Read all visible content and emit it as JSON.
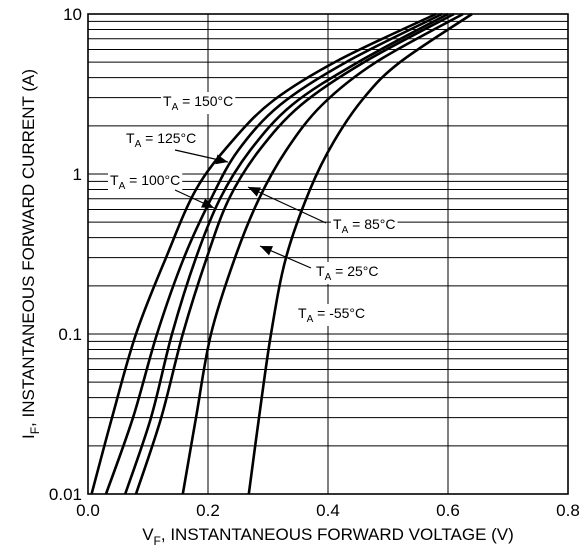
{
  "chart_data": {
    "type": "line",
    "y_scale": "log",
    "xlim": [
      0.0,
      0.8
    ],
    "ylim": [
      0.01,
      10
    ],
    "x_ticks": [
      "0.0",
      "0.2",
      "0.4",
      "0.6",
      "0.8"
    ],
    "y_ticks": [
      "0.01",
      "0.1",
      "1",
      "10"
    ],
    "grid": true,
    "xlabel": {
      "main": "V",
      "sub": "F",
      "rest": ", INSTANTANEOUS FORWARD VOLTAGE (V)"
    },
    "ylabel": {
      "main": "I",
      "sub": "F",
      "rest": ", INSTANTANEOUS FORWARD CURRENT (A)"
    },
    "series": [
      {
        "name": "T_A = 150°C",
        "label": {
          "main": "T",
          "sub": "A",
          "rest": " = 150°C"
        },
        "points": [
          [
            0.006,
            0.01
          ],
          [
            0.04,
            0.03
          ],
          [
            0.08,
            0.1
          ],
          [
            0.13,
            0.3
          ],
          [
            0.18,
            0.8
          ],
          [
            0.24,
            1.6
          ],
          [
            0.31,
            2.9
          ],
          [
            0.42,
            5.2
          ],
          [
            0.58,
            10.0
          ]
        ]
      },
      {
        "name": "T_A = 125°C",
        "label": {
          "main": "T",
          "sub": "A",
          "rest": " = 125°C"
        },
        "points": [
          [
            0.03,
            0.01
          ],
          [
            0.075,
            0.03
          ],
          [
            0.115,
            0.1
          ],
          [
            0.16,
            0.3
          ],
          [
            0.205,
            0.7
          ],
          [
            0.25,
            1.4
          ],
          [
            0.32,
            2.7
          ],
          [
            0.43,
            5.0
          ],
          [
            0.59,
            10.0
          ]
        ]
      },
      {
        "name": "T_A = 100°C",
        "label": {
          "main": "T",
          "sub": "A",
          "rest": " = 100°C"
        },
        "points": [
          [
            0.062,
            0.01
          ],
          [
            0.105,
            0.03
          ],
          [
            0.14,
            0.1
          ],
          [
            0.18,
            0.3
          ],
          [
            0.22,
            0.7
          ],
          [
            0.27,
            1.4
          ],
          [
            0.34,
            2.7
          ],
          [
            0.45,
            5.0
          ],
          [
            0.6,
            10.0
          ]
        ]
      },
      {
        "name": "T_A = 85°C",
        "label": {
          "main": "T",
          "sub": "A",
          "rest": " = 85°C"
        },
        "points": [
          [
            0.08,
            0.01
          ],
          [
            0.122,
            0.03
          ],
          [
            0.158,
            0.1
          ],
          [
            0.198,
            0.3
          ],
          [
            0.235,
            0.7
          ],
          [
            0.285,
            1.4
          ],
          [
            0.355,
            2.7
          ],
          [
            0.46,
            5.0
          ],
          [
            0.61,
            10.0
          ]
        ]
      },
      {
        "name": "T_A = 25°C",
        "label": {
          "main": "T",
          "sub": "A",
          "rest": " = 25°C"
        },
        "points": [
          [
            0.158,
            0.01
          ],
          [
            0.18,
            0.03
          ],
          [
            0.205,
            0.1
          ],
          [
            0.245,
            0.3
          ],
          [
            0.285,
            0.7
          ],
          [
            0.33,
            1.4
          ],
          [
            0.39,
            2.7
          ],
          [
            0.48,
            5.0
          ],
          [
            0.625,
            10.0
          ]
        ]
      },
      {
        "name": "T_A = -55°C",
        "label": {
          "main": "T",
          "sub": "A",
          "rest": " = -55°C"
        },
        "points": [
          [
            0.268,
            0.01
          ],
          [
            0.285,
            0.03
          ],
          [
            0.305,
            0.1
          ],
          [
            0.33,
            0.3
          ],
          [
            0.37,
            0.8
          ],
          [
            0.41,
            1.6
          ],
          [
            0.46,
            3.0
          ],
          [
            0.52,
            5.0
          ],
          [
            0.64,
            10.0
          ]
        ]
      }
    ]
  }
}
